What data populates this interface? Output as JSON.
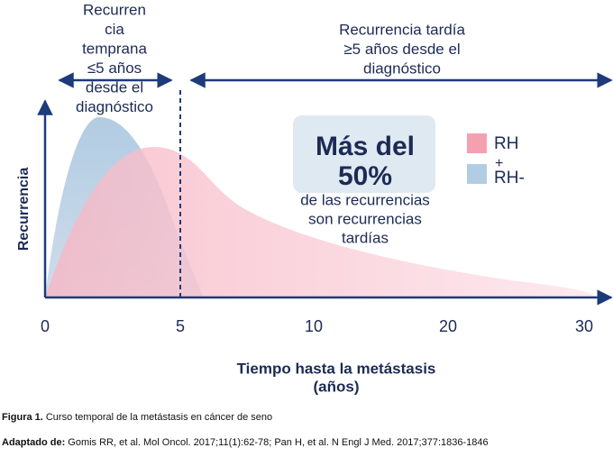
{
  "early_label": [
    "Recurren",
    "cia",
    "temprana",
    "≤5 años",
    "desde el",
    "diagnóstico"
  ],
  "late_label": [
    "Recurrencia tardía",
    "≥5 años desde el",
    "diagnóstico"
  ],
  "highlight": {
    "headline": [
      "Más del",
      "50%"
    ],
    "text": [
      "de las recurrencias",
      "son recurrencias",
      "tardías"
    ]
  },
  "legend": {
    "pink": "RH",
    "plus": "+",
    "blue": "RH-"
  },
  "y_axis_title": "Recurrencia",
  "x_axis": {
    "ticks": [
      "0",
      "5",
      "10",
      "20",
      "30"
    ],
    "title": [
      "Tiempo hasta la metástasis",
      "(años)"
    ]
  },
  "caption": {
    "figure_label": "Figura 1.",
    "figure_text": "Curso temporal de la metástasis en cáncer de seno",
    "source_label": "Adaptado de:",
    "source_text": "Gomis RR, et al. Mol Oncol. 2017;11(1):62-78; Pan H, et al. N Engl J Med. 2017;377:1836-1846"
  }
}
